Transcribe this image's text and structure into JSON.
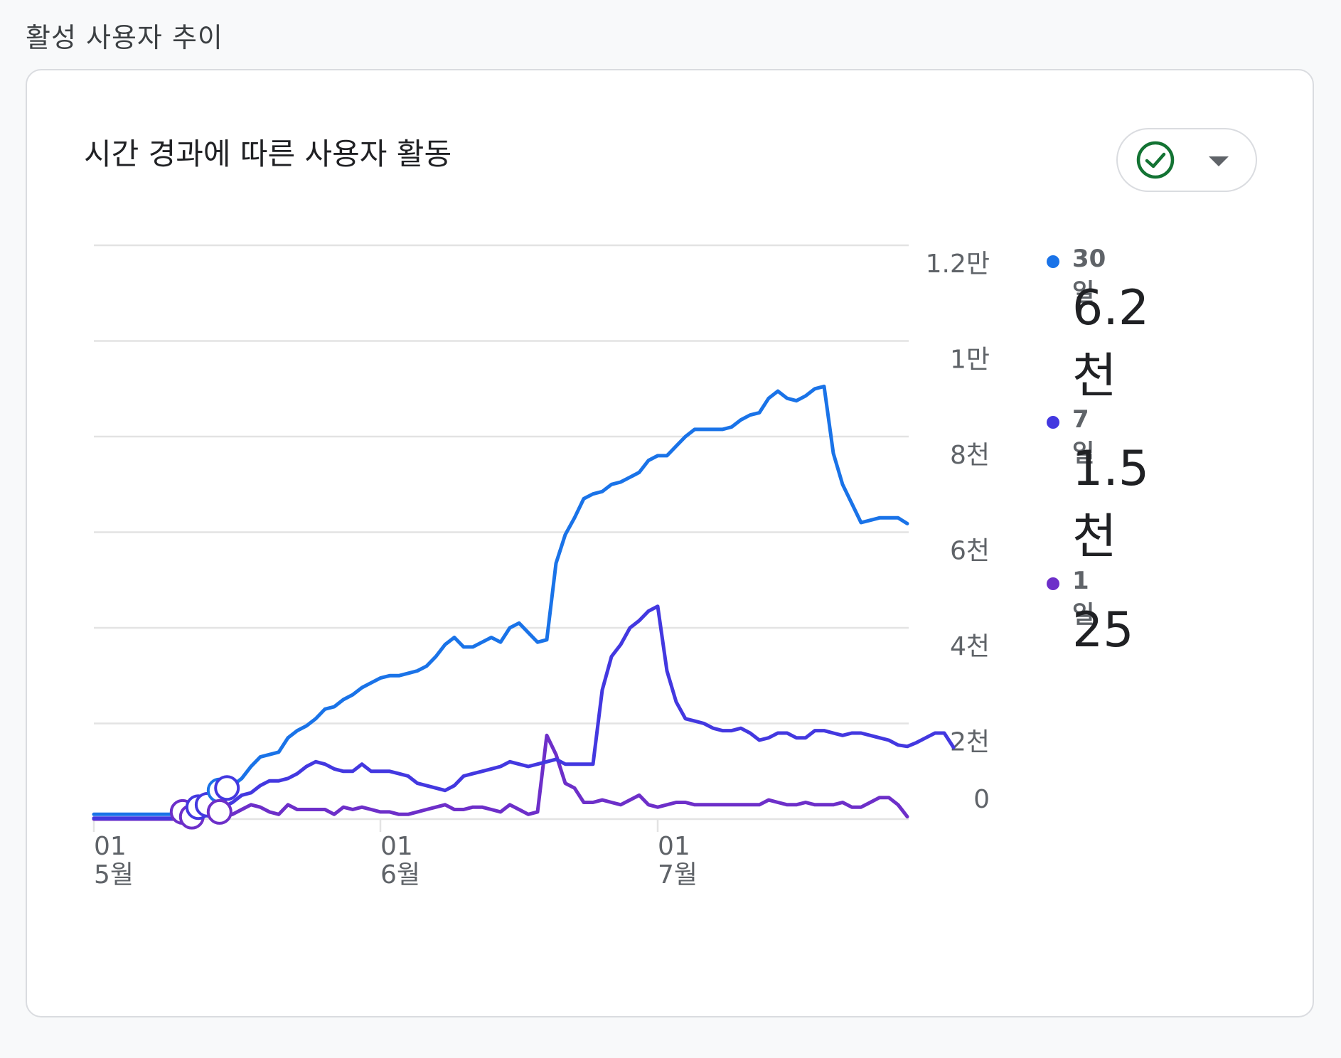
{
  "section_title": "활성 사용자 추이",
  "card": {
    "title": "시간 경과에 따른 사용자 활동",
    "compare_icon": "check-circle-icon",
    "dropdown_icon": "caret-down-icon"
  },
  "colors": {
    "series_30d": "#1a73e8",
    "series_7d": "#4338e0",
    "series_1d": "#6d2fc9",
    "check": "#137333",
    "grid": "#e3e3e3"
  },
  "legend": [
    {
      "name": "30일",
      "value": "6.2천",
      "color": "#1a73e8"
    },
    {
      "name": "7일",
      "value": "1.5천",
      "color": "#4338e0"
    },
    {
      "name": "1일",
      "value": "25",
      "color": "#6d2fc9"
    }
  ],
  "chart_data": {
    "type": "line",
    "y_ticks": [
      {
        "value": 0,
        "label": "0"
      },
      {
        "value": 2000,
        "label": "2천"
      },
      {
        "value": 4000,
        "label": "4천"
      },
      {
        "value": 6000,
        "label": "6천"
      },
      {
        "value": 8000,
        "label": "8천"
      },
      {
        "value": 10000,
        "label": "1만"
      },
      {
        "value": 12000,
        "label": "1.2만"
      }
    ],
    "ylim": [
      0,
      12000
    ],
    "x_range": [
      0,
      88
    ],
    "x_ticks": [
      {
        "x": 0,
        "day": "01",
        "month": "5월"
      },
      {
        "x": 31,
        "day": "01",
        "month": "6월"
      },
      {
        "x": 61,
        "day": "01",
        "month": "7월"
      }
    ],
    "grid": true,
    "legend_position": "right",
    "series": [
      {
        "name": "30일",
        "color": "#1a73e8",
        "points": [
          [
            0,
            100
          ],
          [
            9,
            100
          ],
          [
            10,
            200
          ],
          [
            12,
            400
          ],
          [
            13,
            550
          ],
          [
            14,
            600
          ],
          [
            15,
            700
          ],
          [
            16,
            850
          ],
          [
            17,
            1100
          ],
          [
            18,
            1300
          ],
          [
            19,
            1350
          ],
          [
            20,
            1400
          ],
          [
            21,
            1700
          ],
          [
            22,
            1850
          ],
          [
            23,
            1950
          ],
          [
            24,
            2100
          ],
          [
            25,
            2300
          ],
          [
            26,
            2350
          ],
          [
            27,
            2500
          ],
          [
            28,
            2600
          ],
          [
            29,
            2750
          ],
          [
            30,
            2850
          ],
          [
            31,
            2950
          ],
          [
            32,
            3000
          ],
          [
            33,
            3000
          ],
          [
            34,
            3050
          ],
          [
            35,
            3100
          ],
          [
            36,
            3200
          ],
          [
            37,
            3400
          ],
          [
            38,
            3650
          ],
          [
            39,
            3800
          ],
          [
            40,
            3600
          ],
          [
            41,
            3600
          ],
          [
            42,
            3700
          ],
          [
            43,
            3800
          ],
          [
            44,
            3700
          ],
          [
            45,
            4000
          ],
          [
            46,
            4100
          ],
          [
            47,
            3900
          ],
          [
            48,
            3700
          ],
          [
            49,
            3750
          ],
          [
            50,
            5350
          ],
          [
            51,
            5950
          ],
          [
            52,
            6300
          ],
          [
            53,
            6700
          ],
          [
            54,
            6800
          ],
          [
            55,
            6850
          ],
          [
            56,
            7000
          ],
          [
            57,
            7050
          ],
          [
            58,
            7150
          ],
          [
            59,
            7250
          ],
          [
            60,
            7500
          ],
          [
            61,
            7600
          ],
          [
            62,
            7600
          ],
          [
            63,
            7800
          ],
          [
            64,
            8000
          ],
          [
            65,
            8150
          ],
          [
            66,
            8150
          ],
          [
            67,
            8150
          ],
          [
            68,
            8150
          ],
          [
            69,
            8200
          ],
          [
            70,
            8350
          ],
          [
            71,
            8450
          ],
          [
            72,
            8500
          ],
          [
            73,
            8800
          ],
          [
            74,
            8950
          ],
          [
            75,
            8800
          ],
          [
            76,
            8750
          ],
          [
            77,
            8850
          ],
          [
            78,
            9000
          ],
          [
            79,
            9050
          ],
          [
            80,
            7650
          ],
          [
            81,
            7000
          ],
          [
            82,
            6600
          ],
          [
            83,
            6200
          ],
          [
            84,
            6250
          ],
          [
            85,
            6300
          ],
          [
            86,
            6300
          ],
          [
            87,
            6300
          ],
          [
            88,
            6180
          ]
        ]
      },
      {
        "name": "7일",
        "color": "#4338e0",
        "points": [
          [
            0,
            20
          ],
          [
            9,
            20
          ],
          [
            10,
            100
          ],
          [
            12,
            150
          ],
          [
            13,
            200
          ],
          [
            14,
            250
          ],
          [
            15,
            350
          ],
          [
            16,
            500
          ],
          [
            17,
            550
          ],
          [
            18,
            700
          ],
          [
            19,
            800
          ],
          [
            20,
            800
          ],
          [
            21,
            850
          ],
          [
            22,
            950
          ],
          [
            23,
            1100
          ],
          [
            24,
            1200
          ],
          [
            25,
            1150
          ],
          [
            26,
            1050
          ],
          [
            27,
            1000
          ],
          [
            28,
            1000
          ],
          [
            29,
            1150
          ],
          [
            30,
            1000
          ],
          [
            31,
            1000
          ],
          [
            32,
            1000
          ],
          [
            33,
            950
          ],
          [
            34,
            900
          ],
          [
            35,
            750
          ],
          [
            36,
            700
          ],
          [
            37,
            650
          ],
          [
            38,
            600
          ],
          [
            39,
            700
          ],
          [
            40,
            900
          ],
          [
            41,
            950
          ],
          [
            42,
            1000
          ],
          [
            43,
            1050
          ],
          [
            44,
            1100
          ],
          [
            45,
            1200
          ],
          [
            46,
            1150
          ],
          [
            47,
            1100
          ],
          [
            48,
            1150
          ],
          [
            49,
            1200
          ],
          [
            50,
            1250
          ],
          [
            51,
            1150
          ],
          [
            52,
            1150
          ],
          [
            53,
            1150
          ],
          [
            54,
            1150
          ],
          [
            55,
            2700
          ],
          [
            56,
            3400
          ],
          [
            57,
            3650
          ],
          [
            58,
            4000
          ],
          [
            59,
            4150
          ],
          [
            60,
            4350
          ],
          [
            61,
            4450
          ],
          [
            62,
            3100
          ],
          [
            63,
            2450
          ],
          [
            64,
            2100
          ],
          [
            65,
            2050
          ],
          [
            66,
            2000
          ],
          [
            67,
            1900
          ],
          [
            68,
            1850
          ],
          [
            69,
            1850
          ],
          [
            70,
            1900
          ],
          [
            71,
            1800
          ],
          [
            72,
            1650
          ],
          [
            73,
            1700
          ],
          [
            74,
            1800
          ],
          [
            75,
            1800
          ],
          [
            76,
            1700
          ],
          [
            77,
            1700
          ],
          [
            78,
            1850
          ],
          [
            79,
            1850
          ],
          [
            80,
            1800
          ],
          [
            81,
            1750
          ],
          [
            82,
            1800
          ],
          [
            83,
            1800
          ],
          [
            84,
            1750
          ],
          [
            85,
            1700
          ],
          [
            86,
            1650
          ],
          [
            87,
            1550
          ],
          [
            88,
            1520
          ],
          [
            89,
            1600
          ],
          [
            90,
            1700
          ],
          [
            91,
            1800
          ],
          [
            92,
            1800
          ],
          [
            93,
            1500
          ]
        ]
      },
      {
        "name": "1일",
        "color": "#6d2fc9",
        "points": [
          [
            0,
            0
          ],
          [
            9,
            0
          ],
          [
            10,
            50
          ],
          [
            11,
            150
          ],
          [
            12,
            200
          ],
          [
            13,
            100
          ],
          [
            14,
            50
          ],
          [
            15,
            100
          ],
          [
            16,
            200
          ],
          [
            17,
            300
          ],
          [
            18,
            250
          ],
          [
            19,
            150
          ],
          [
            20,
            100
          ],
          [
            21,
            300
          ],
          [
            22,
            200
          ],
          [
            23,
            200
          ],
          [
            24,
            200
          ],
          [
            25,
            200
          ],
          [
            26,
            100
          ],
          [
            27,
            250
          ],
          [
            28,
            200
          ],
          [
            29,
            250
          ],
          [
            30,
            200
          ],
          [
            31,
            150
          ],
          [
            32,
            150
          ],
          [
            33,
            100
          ],
          [
            34,
            100
          ],
          [
            35,
            150
          ],
          [
            36,
            200
          ],
          [
            37,
            250
          ],
          [
            38,
            300
          ],
          [
            39,
            200
          ],
          [
            40,
            200
          ],
          [
            41,
            250
          ],
          [
            42,
            250
          ],
          [
            43,
            200
          ],
          [
            44,
            150
          ],
          [
            45,
            300
          ],
          [
            46,
            200
          ],
          [
            47,
            100
          ],
          [
            48,
            150
          ],
          [
            49,
            1750
          ],
          [
            50,
            1350
          ],
          [
            51,
            750
          ],
          [
            52,
            650
          ],
          [
            53,
            350
          ],
          [
            54,
            350
          ],
          [
            55,
            400
          ],
          [
            56,
            350
          ],
          [
            57,
            300
          ],
          [
            58,
            400
          ],
          [
            59,
            500
          ],
          [
            60,
            300
          ],
          [
            61,
            250
          ],
          [
            62,
            300
          ],
          [
            63,
            350
          ],
          [
            64,
            350
          ],
          [
            65,
            300
          ],
          [
            66,
            300
          ],
          [
            67,
            300
          ],
          [
            68,
            300
          ],
          [
            69,
            300
          ],
          [
            70,
            300
          ],
          [
            71,
            300
          ],
          [
            72,
            300
          ],
          [
            73,
            400
          ],
          [
            74,
            350
          ],
          [
            75,
            300
          ],
          [
            76,
            300
          ],
          [
            77,
            350
          ],
          [
            78,
            300
          ],
          [
            79,
            300
          ],
          [
            80,
            300
          ],
          [
            81,
            350
          ],
          [
            82,
            250
          ],
          [
            83,
            250
          ],
          [
            84,
            350
          ],
          [
            85,
            450
          ],
          [
            86,
            450
          ],
          [
            87,
            300
          ],
          [
            88,
            50
          ]
        ]
      }
    ]
  }
}
